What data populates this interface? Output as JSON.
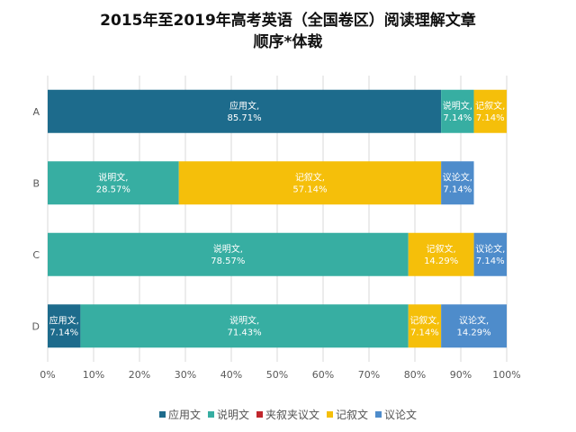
{
  "chart_data": {
    "type": "bar",
    "orientation": "horizontal",
    "stacked": "percent",
    "title_line1": "2015年至2019年高考英语（全国卷区）阅读理解文章",
    "title_line2": "顺序*体裁",
    "categories": [
      "A",
      "B",
      "C",
      "D"
    ],
    "xlim": [
      0,
      100
    ],
    "x_ticks": [
      "0%",
      "10%",
      "20%",
      "30%",
      "40%",
      "50%",
      "60%",
      "70%",
      "80%",
      "90%",
      "100%"
    ],
    "grid": true,
    "legend_position": "bottom",
    "series": [
      {
        "name": "应用文",
        "color": "#1d6b8c",
        "values": [
          85.71,
          0,
          0,
          7.14
        ],
        "labels": [
          "85.71%",
          "",
          "",
          "7.14%"
        ]
      },
      {
        "name": "说明文",
        "color": "#37aea2",
        "values": [
          7.14,
          28.57,
          78.57,
          71.43
        ],
        "labels": [
          "7.14%",
          "28.57%",
          "78.57%",
          "71.43%"
        ]
      },
      {
        "name": "夹叙夹议文",
        "color": "#c0272d",
        "values": [
          0,
          0,
          0,
          0
        ],
        "labels": [
          "",
          "",
          "",
          ""
        ]
      },
      {
        "name": "记叙文",
        "color": "#f5bf0a",
        "values": [
          7.14,
          57.14,
          14.29,
          7.14
        ],
        "labels": [
          "7.14%",
          "57.14%",
          "14.29%",
          "7.14%"
        ]
      },
      {
        "name": "议论文",
        "color": "#4e8ccb",
        "values": [
          0,
          7.14,
          7.14,
          14.29
        ],
        "labels": [
          "",
          "7.14%",
          "7.14%",
          "14.29%"
        ]
      }
    ],
    "label_suffix": ","
  }
}
